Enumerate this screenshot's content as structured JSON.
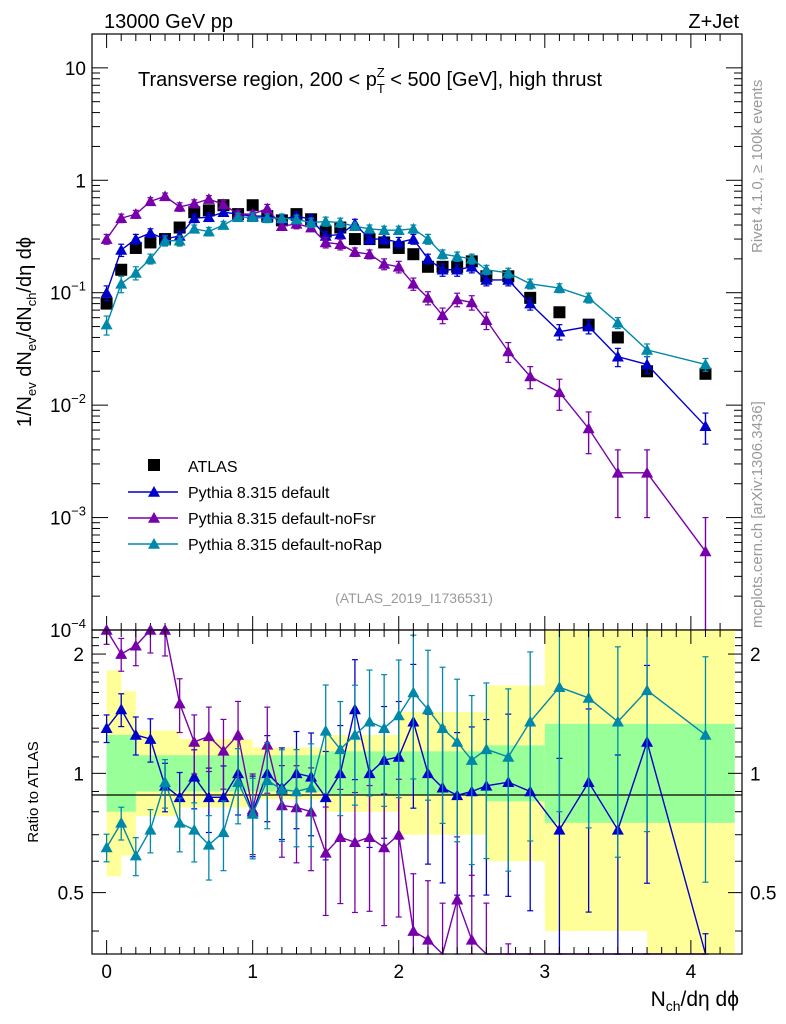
{
  "header": {
    "energy_label": "13000 GeV pp",
    "process_label": "Z+Jet",
    "plot_title": "Transverse region, 200 < p_T^Z < 500 [GeV], high thrust",
    "analysis_id": "(ATLAS_2019_I1736531)",
    "side_label_top": "Rivet 4.1.0, ≥ 100k events",
    "side_label_bottom": "mcplots.cern.ch [arXiv:1306.3436]"
  },
  "axes": {
    "xlabel": "N_ch/dη dφ",
    "ylabel_main": "1/N_ev dN_ev/dN_ch/dη dφ",
    "ylabel_ratio": "Ratio to ATLAS",
    "x_ticks": [
      "0",
      "1",
      "2",
      "3",
      "4"
    ],
    "main_ticks": [
      "10",
      "1",
      "10^-1",
      "10^-2",
      "10^-3",
      "10^-4"
    ],
    "ratio_ticks": [
      "0.5",
      "1",
      "2"
    ]
  },
  "colors": {
    "atlas": "#000000",
    "default": "#0000cc",
    "noFsr": "#7700aa",
    "noRap": "#0088aa",
    "band_green": "#99ff99",
    "band_yellow": "#ffff99"
  },
  "chart_data": {
    "type": "scatter",
    "title": "Transverse region, 200 < p_T^Z < 500 [GeV], high thrust",
    "xlim": [
      -0.1,
      4.35
    ],
    "ylim_main": [
      0.0001,
      20
    ],
    "ylim_ratio": [
      0.35,
      2.3
    ],
    "legend_position": "lower-left",
    "series": [
      {
        "name": "ATLAS",
        "key": "atlas",
        "marker": "square",
        "x": [
          0.0,
          0.1,
          0.2,
          0.3,
          0.4,
          0.5,
          0.6,
          0.7,
          0.8,
          0.9,
          1.0,
          1.1,
          1.2,
          1.3,
          1.4,
          1.5,
          1.6,
          1.7,
          1.8,
          1.9,
          2.0,
          2.1,
          2.2,
          2.3,
          2.4,
          2.5,
          2.6,
          2.75,
          2.9,
          3.1,
          3.3,
          3.5,
          3.7,
          4.1
        ],
        "y": [
          0.08,
          0.16,
          0.25,
          0.28,
          0.3,
          0.38,
          0.52,
          0.54,
          0.6,
          0.5,
          0.6,
          0.48,
          0.44,
          0.5,
          0.45,
          0.35,
          0.38,
          0.3,
          0.3,
          0.28,
          0.25,
          0.22,
          0.17,
          0.17,
          0.17,
          0.19,
          0.14,
          0.14,
          0.09,
          0.067,
          0.052,
          0.04,
          0.02,
          0.019
        ]
      },
      {
        "name": "Pythia 8.315 default",
        "key": "default",
        "marker": "triangle",
        "x": [
          0.0,
          0.1,
          0.2,
          0.3,
          0.4,
          0.5,
          0.6,
          0.7,
          0.8,
          0.9,
          1.0,
          1.1,
          1.2,
          1.3,
          1.4,
          1.5,
          1.6,
          1.7,
          1.8,
          1.9,
          2.0,
          2.1,
          2.2,
          2.3,
          2.4,
          2.5,
          2.6,
          2.75,
          2.9,
          3.1,
          3.3,
          3.5,
          3.7,
          4.1
        ],
        "y": [
          0.1,
          0.24,
          0.3,
          0.34,
          0.3,
          0.32,
          0.46,
          0.47,
          0.52,
          0.5,
          0.48,
          0.48,
          0.45,
          0.48,
          0.45,
          0.32,
          0.33,
          0.41,
          0.3,
          0.3,
          0.28,
          0.3,
          0.2,
          0.16,
          0.16,
          0.17,
          0.13,
          0.13,
          0.08,
          0.045,
          0.05,
          0.027,
          0.023,
          0.0065
        ],
        "err": [
          0.015,
          0.03,
          0.03,
          0.03,
          0.03,
          0.03,
          0.04,
          0.04,
          0.04,
          0.04,
          0.04,
          0.04,
          0.04,
          0.04,
          0.04,
          0.03,
          0.03,
          0.04,
          0.03,
          0.03,
          0.03,
          0.03,
          0.02,
          0.02,
          0.02,
          0.02,
          0.015,
          0.015,
          0.01,
          0.007,
          0.007,
          0.005,
          0.004,
          0.002
        ]
      },
      {
        "name": "Pythia 8.315 default-noFsr",
        "key": "noFsr",
        "marker": "triangle",
        "x": [
          0.0,
          0.1,
          0.2,
          0.3,
          0.4,
          0.5,
          0.6,
          0.7,
          0.8,
          0.9,
          1.0,
          1.1,
          1.2,
          1.3,
          1.4,
          1.5,
          1.6,
          1.7,
          1.8,
          1.9,
          2.0,
          2.1,
          2.2,
          2.3,
          2.4,
          2.5,
          2.6,
          2.75,
          2.9,
          3.1,
          3.3,
          3.5,
          3.7,
          4.1
        ],
        "y": [
          0.3,
          0.46,
          0.5,
          0.65,
          0.72,
          0.58,
          0.62,
          0.68,
          0.61,
          0.5,
          0.5,
          0.56,
          0.39,
          0.41,
          0.38,
          0.28,
          0.27,
          0.23,
          0.22,
          0.18,
          0.17,
          0.12,
          0.09,
          0.063,
          0.087,
          0.082,
          0.057,
          0.03,
          0.018,
          0.013,
          0.0062,
          0.0025,
          0.0025,
          0.0005
        ],
        "err": [
          0.03,
          0.04,
          0.04,
          0.05,
          0.05,
          0.05,
          0.05,
          0.05,
          0.05,
          0.04,
          0.04,
          0.05,
          0.03,
          0.04,
          0.03,
          0.03,
          0.03,
          0.02,
          0.02,
          0.02,
          0.02,
          0.015,
          0.012,
          0.01,
          0.012,
          0.012,
          0.01,
          0.006,
          0.004,
          0.004,
          0.0025,
          0.0015,
          0.0015,
          0.0005
        ]
      },
      {
        "name": "Pythia 8.315 default-noRap",
        "key": "noRap",
        "marker": "triangle",
        "x": [
          0.0,
          0.1,
          0.2,
          0.3,
          0.4,
          0.5,
          0.6,
          0.7,
          0.8,
          0.9,
          1.0,
          1.1,
          1.2,
          1.3,
          1.4,
          1.5,
          1.6,
          1.7,
          1.8,
          1.9,
          2.0,
          2.1,
          2.2,
          2.3,
          2.4,
          2.5,
          2.6,
          2.75,
          2.9,
          3.1,
          3.3,
          3.5,
          3.7,
          4.1
        ],
        "y": [
          0.052,
          0.12,
          0.15,
          0.2,
          0.29,
          0.29,
          0.37,
          0.35,
          0.4,
          0.47,
          0.47,
          0.46,
          0.46,
          0.45,
          0.42,
          0.43,
          0.42,
          0.39,
          0.37,
          0.36,
          0.36,
          0.37,
          0.3,
          0.22,
          0.21,
          0.2,
          0.16,
          0.15,
          0.12,
          0.11,
          0.09,
          0.054,
          0.031,
          0.023
        ],
        "err": [
          0.01,
          0.02,
          0.02,
          0.02,
          0.03,
          0.03,
          0.03,
          0.03,
          0.03,
          0.04,
          0.04,
          0.04,
          0.04,
          0.04,
          0.04,
          0.04,
          0.04,
          0.03,
          0.03,
          0.03,
          0.03,
          0.03,
          0.03,
          0.02,
          0.02,
          0.02,
          0.015,
          0.015,
          0.012,
          0.01,
          0.009,
          0.006,
          0.004,
          0.003
        ]
      }
    ],
    "ratio": {
      "x": [
        0.0,
        0.1,
        0.2,
        0.3,
        0.4,
        0.5,
        0.6,
        0.7,
        0.8,
        0.9,
        1.0,
        1.1,
        1.2,
        1.3,
        1.4,
        1.5,
        1.6,
        1.7,
        1.8,
        1.9,
        2.0,
        2.1,
        2.2,
        2.3,
        2.4,
        2.5,
        2.6,
        2.75,
        2.9,
        3.1,
        3.3,
        3.5,
        3.7,
        4.1
      ],
      "default": [
        1.3,
        1.45,
        1.25,
        1.22,
        0.93,
        0.87,
        0.98,
        0.87,
        0.87,
        1.0,
        0.8,
        1.0,
        0.92,
        1.0,
        0.98,
        0.87,
        1.0,
        1.45,
        1.0,
        1.08,
        1.1,
        1.35,
        1.0,
        0.92,
        0.88,
        0.9,
        0.93,
        0.95,
        0.9,
        0.72,
        0.95,
        0.72,
        1.2,
        0.25
      ],
      "noFsr": [
        2.3,
        2.0,
        2.1,
        2.3,
        2.3,
        1.5,
        1.2,
        1.24,
        1.14,
        1.25,
        0.81,
        1.18,
        0.83,
        0.82,
        0.8,
        0.63,
        0.69,
        0.67,
        0.69,
        0.65,
        0.7,
        0.4,
        0.38,
        0.33,
        0.48,
        0.38,
        0.32,
        0.25,
        0.22,
        0.2,
        0.15,
        0.08,
        0.1,
        0.05
      ],
      "noRap": [
        0.65,
        0.75,
        0.62,
        0.72,
        0.95,
        0.75,
        0.72,
        0.66,
        0.71,
        0.95,
        0.79,
        0.96,
        0.91,
        0.9,
        0.92,
        1.28,
        1.15,
        1.25,
        1.35,
        1.3,
        1.4,
        1.6,
        1.45,
        1.3,
        1.2,
        1.08,
        1.15,
        1.1,
        1.35,
        1.65,
        1.55,
        1.35,
        1.62,
        1.25
      ],
      "band_inner": [
        [
          0.0,
          0.2,
          0.8
        ],
        [
          0.2,
          0.9,
          0.9
        ],
        [
          0.9,
          1.5,
          0.9
        ],
        [
          1.5,
          2.6,
          0.88
        ],
        [
          2.6,
          3.0,
          0.85
        ],
        [
          3.0,
          3.7,
          0.75
        ],
        [
          3.7,
          4.3,
          0.75
        ]
      ],
      "band_outer": [
        [
          0.0,
          0.1,
          0.55
        ],
        [
          0.1,
          0.2,
          0.62
        ],
        [
          0.2,
          0.5,
          0.78
        ],
        [
          0.5,
          1.0,
          0.82
        ],
        [
          1.0,
          1.5,
          0.86
        ],
        [
          1.5,
          2.0,
          0.8
        ],
        [
          2.0,
          2.6,
          0.7
        ],
        [
          2.6,
          3.0,
          0.6
        ],
        [
          3.0,
          3.3,
          0.4
        ],
        [
          3.3,
          3.7,
          0.4
        ],
        [
          3.7,
          4.3,
          0.35
        ]
      ]
    }
  }
}
